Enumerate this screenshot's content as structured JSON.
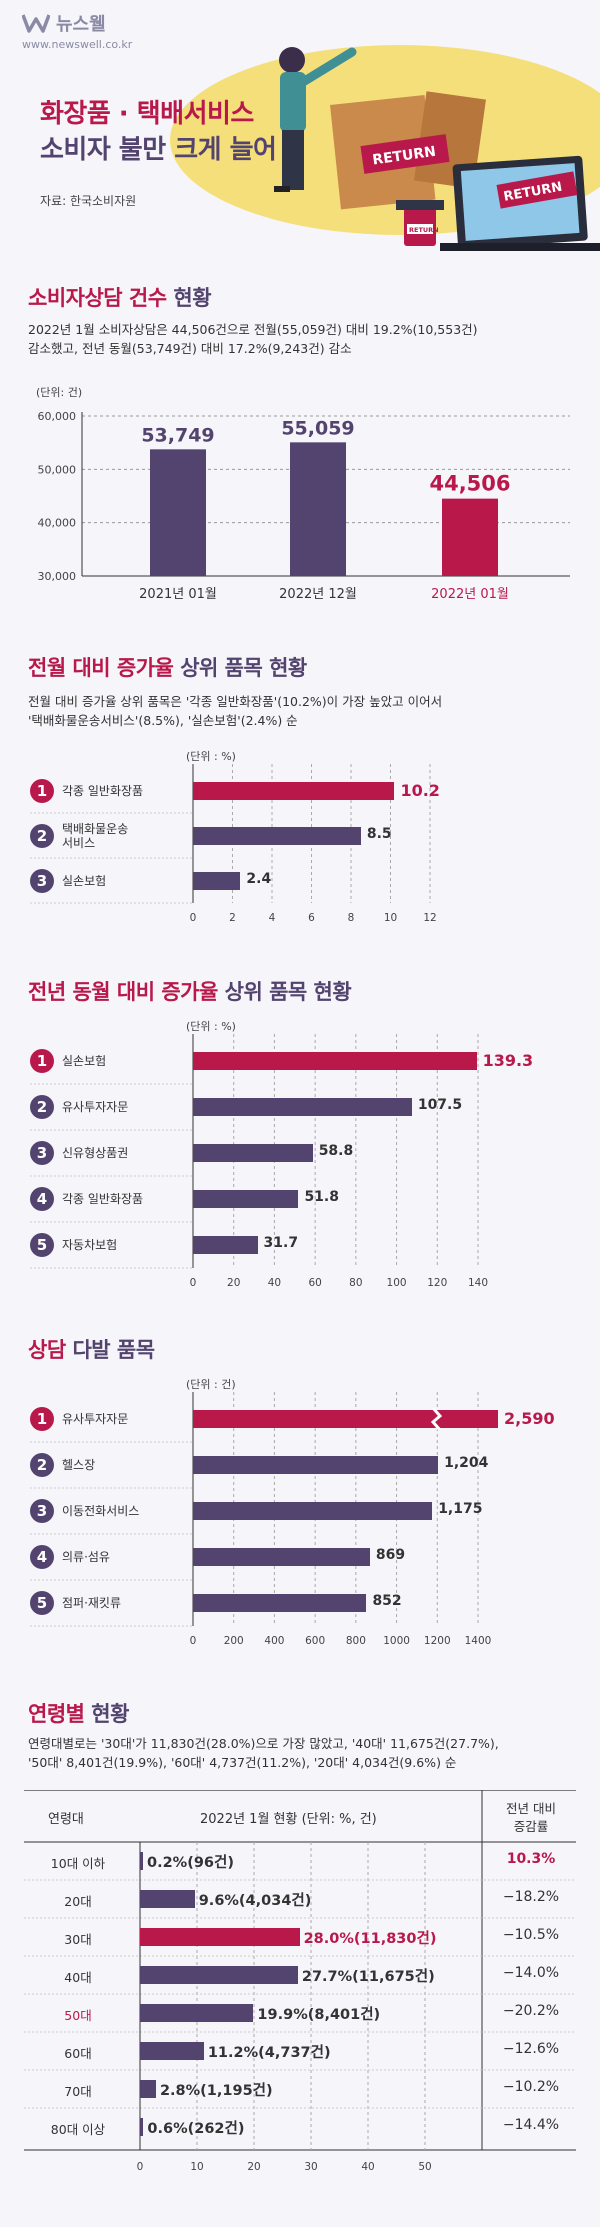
{
  "brand": {
    "name": "뉴스웰",
    "url": "www.newswell.co.kr"
  },
  "header": {
    "title_line1": "화장품 · 택배서비스",
    "title_line2": "소비자 불만 크게 늘어",
    "source": "자료: 한국소비자원",
    "return_label": "RETURN"
  },
  "colors": {
    "purple": "#53446f",
    "crimson": "#b8194a",
    "accent_yellow": "#f5df7a"
  },
  "chart_data": [
    {
      "type": "bar",
      "title_main": "소비자상담 건수",
      "title_sub": "현황",
      "description": [
        "2022년 1월 소비자상담은 44,506건으로 전월(55,059건) 대비 19.2%(10,553건)",
        "감소했고, 전년 동월(53,749건) 대비 17.2%(9,243건) 감소"
      ],
      "unit": "(단위: 건)",
      "categories": [
        "2021년 01월",
        "2022년 12월",
        "2022년 01월"
      ],
      "values": [
        53749,
        55059,
        44506
      ],
      "value_labels": [
        "53,749",
        "55,059",
        "44,506"
      ],
      "y_ticks": [
        "60,000",
        "50,000",
        "40,000",
        "30,000"
      ],
      "ylim": [
        30000,
        60000
      ],
      "highlight_index": 2
    },
    {
      "type": "bar",
      "orientation": "horizontal",
      "title_main": "전월 대비 증가율",
      "title_sub": "상위 품목 현황",
      "description": [
        "전월 대비 증가율 상위 품목은 '각종 일반화장품'(10.2%)이 가장 높았고 이어서",
        "'택배화물운송서비스'(8.5%), '실손보험'(2.4%) 순"
      ],
      "unit": "(단위 : %)",
      "categories": [
        "각종 일반화장품",
        "택배화물운송\n서비스",
        "실손보험"
      ],
      "values": [
        10.2,
        8.5,
        2.4
      ],
      "value_labels": [
        "10.2",
        "8.5",
        "2.4"
      ],
      "ranks": [
        "1",
        "2",
        "3"
      ],
      "x_ticks": [
        "0",
        "2",
        "4",
        "6",
        "8",
        "10",
        "12"
      ],
      "xlim": [
        0,
        12
      ]
    },
    {
      "type": "bar",
      "orientation": "horizontal",
      "title_main": "전년 동월 대비 증가율",
      "title_sub": "상위 품목 현황",
      "unit": "(단위 : %)",
      "categories": [
        "실손보험",
        "유사투자자문",
        "신유형상품권",
        "각종 일반화장품",
        "자동차보험"
      ],
      "values": [
        139.3,
        107.5,
        58.8,
        51.8,
        31.7
      ],
      "value_labels": [
        "139.3",
        "107.5",
        "58.8",
        "51.8",
        "31.7"
      ],
      "ranks": [
        "1",
        "2",
        "3",
        "4",
        "5"
      ],
      "x_ticks": [
        "0",
        "20",
        "40",
        "60",
        "80",
        "100",
        "120",
        "140"
      ],
      "xlim": [
        0,
        140
      ]
    },
    {
      "type": "bar",
      "orientation": "horizontal",
      "title_main": "상담",
      "title_sub": "다발 품목",
      "unit": "(단위 : 건)",
      "categories": [
        "유사투자자문",
        "헬스장",
        "이동전화서비스",
        "의류·섬유",
        "점퍼·재킷류"
      ],
      "values": [
        2590,
        1204,
        1175,
        869,
        852
      ],
      "value_labels": [
        "2,590",
        "1,204",
        "1,175",
        "869",
        "852"
      ],
      "ranks": [
        "1",
        "2",
        "3",
        "4",
        "5"
      ],
      "x_ticks": [
        "0",
        "200",
        "400",
        "600",
        "800",
        "1000",
        "1200",
        "1400"
      ],
      "xlim": [
        0,
        1400
      ],
      "broken_axis_index": 0
    },
    {
      "type": "table",
      "title_main": "연령별",
      "title_sub": "현황",
      "description": [
        "연령대별로는 '30대'가 11,830건(28.0%)으로 가장 많았고, '40대' 11,675건(27.7%),",
        "'50대' 8,401건(19.9%), '60대' 4,737건(11.2%), '20대' 4,034건(9.6%) 순"
      ],
      "headers": {
        "age": "연령대",
        "current": "2022년 1월 현황 (단위: %, 건)",
        "change_line1": "전년 대비",
        "change_line2": "증감률"
      },
      "rows": [
        {
          "age": "10대 이하",
          "pct": 0.2,
          "label": "0.2%(96건)",
          "change": "10.3%"
        },
        {
          "age": "20대",
          "pct": 9.6,
          "label": "9.6%(4,034건)",
          "change": "−18.2%"
        },
        {
          "age": "30대",
          "pct": 28.0,
          "label": "28.0%(11,830건)",
          "change": "−10.5%"
        },
        {
          "age": "40대",
          "pct": 27.7,
          "label": "27.7%(11,675건)",
          "change": "−14.0%"
        },
        {
          "age": "50대",
          "pct": 19.9,
          "label": "19.9%(8,401건)",
          "change": "−20.2%"
        },
        {
          "age": "60대",
          "pct": 11.2,
          "label": "11.2%(4,737건)",
          "change": "−12.6%"
        },
        {
          "age": "70대",
          "pct": 2.8,
          "label": "2.8%(1,195건)",
          "change": "−10.2%"
        },
        {
          "age": "80대 이상",
          "pct": 0.6,
          "label": "0.6%(262건)",
          "change": "−14.4%"
        }
      ],
      "x_ticks": [
        "0",
        "10",
        "20",
        "30",
        "40",
        "50"
      ],
      "xlim": [
        0,
        50
      ]
    }
  ]
}
